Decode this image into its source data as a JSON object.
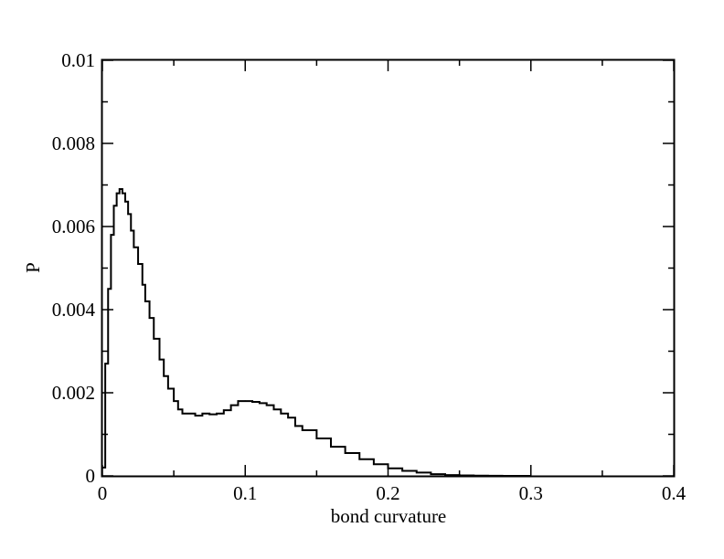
{
  "chart_data": {
    "type": "line",
    "xlabel": "bond curvature",
    "ylabel": "P",
    "xlim": [
      0,
      0.4
    ],
    "ylim": [
      0,
      0.01
    ],
    "grid": false,
    "x_ticks": [
      {
        "value": 0,
        "label": "0"
      },
      {
        "value": 0.1,
        "label": "0.1"
      },
      {
        "value": 0.2,
        "label": "0.2"
      },
      {
        "value": 0.3,
        "label": "0.3"
      },
      {
        "value": 0.4,
        "label": "0.4"
      }
    ],
    "y_ticks": [
      {
        "value": 0,
        "label": "0"
      },
      {
        "value": 0.002,
        "label": "0.002"
      },
      {
        "value": 0.004,
        "label": "0.004"
      },
      {
        "value": 0.006,
        "label": "0.006"
      },
      {
        "value": 0.008,
        "label": "0.008"
      },
      {
        "value": 0.01,
        "label": "0.01"
      }
    ],
    "series": [
      {
        "color": "#000000",
        "x": [
          0,
          0.002,
          0.004,
          0.006,
          0.008,
          0.01,
          0.012,
          0.014,
          0.016,
          0.018,
          0.02,
          0.022,
          0.025,
          0.028,
          0.03,
          0.033,
          0.036,
          0.04,
          0.043,
          0.046,
          0.05,
          0.053,
          0.056,
          0.06,
          0.065,
          0.07,
          0.075,
          0.08,
          0.085,
          0.09,
          0.095,
          0.1,
          0.105,
          0.11,
          0.115,
          0.12,
          0.125,
          0.13,
          0.135,
          0.14,
          0.15,
          0.16,
          0.17,
          0.18,
          0.19,
          0.2,
          0.21,
          0.22,
          0.23,
          0.24,
          0.25,
          0.26,
          0.27,
          0.28,
          0.29,
          0.3
        ],
        "y": [
          0.0002,
          0.0027,
          0.0045,
          0.0058,
          0.0065,
          0.0068,
          0.0069,
          0.0068,
          0.0066,
          0.0063,
          0.0059,
          0.0055,
          0.0051,
          0.0046,
          0.0042,
          0.0038,
          0.0033,
          0.0028,
          0.0024,
          0.0021,
          0.0018,
          0.0016,
          0.0015,
          0.0015,
          0.00145,
          0.0015,
          0.00148,
          0.0015,
          0.00158,
          0.0017,
          0.0018,
          0.0018,
          0.00178,
          0.00175,
          0.0017,
          0.0016,
          0.0015,
          0.0014,
          0.0012,
          0.0011,
          0.0009,
          0.0007,
          0.00055,
          0.0004,
          0.00028,
          0.00018,
          0.00012,
          8e-05,
          4e-05,
          2e-05,
          1e-05,
          5e-06,
          2e-06,
          1e-06,
          0,
          0
        ]
      }
    ]
  }
}
